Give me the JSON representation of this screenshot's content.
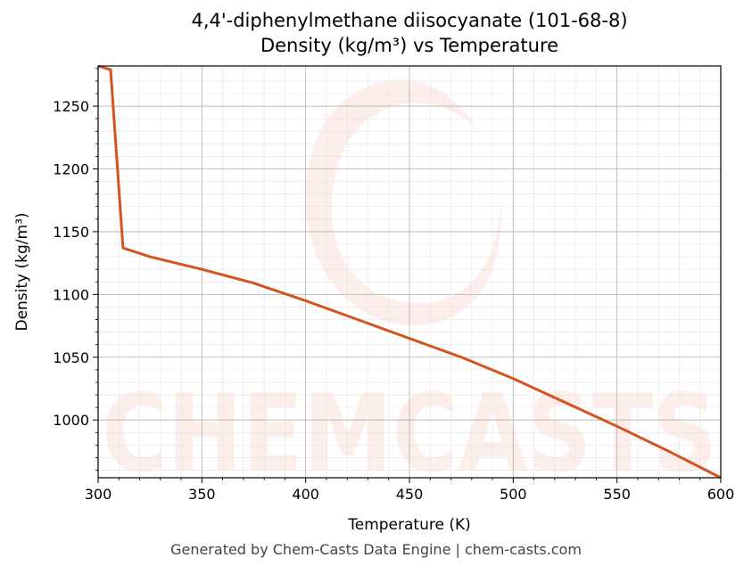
{
  "chart_data": {
    "type": "line",
    "title": "4,4'-diphenylmethane diisocyanate (101-68-8)",
    "subtitle": "Density (kg/m³) vs Temperature",
    "xlabel": "Temperature (K)",
    "ylabel": "Density (kg/m³)",
    "xlim": [
      300,
      600
    ],
    "ylim": [
      954,
      1282
    ],
    "xticks": [
      300,
      350,
      400,
      450,
      500,
      550,
      600
    ],
    "yticks": [
      1000,
      1050,
      1100,
      1150,
      1200,
      1250
    ],
    "grid": true,
    "series": [
      {
        "color": "#d4541f",
        "x": [
          300,
          306,
          312,
          325,
          350,
          375,
          400,
          425,
          450,
          475,
          500,
          525,
          550,
          575,
          600
        ],
        "y": [
          1282,
          1279,
          1137,
          1130,
          1120,
          1109,
          1095,
          1080,
          1065,
          1050,
          1033,
          1014,
          995,
          975,
          954
        ]
      }
    ]
  },
  "watermark": "CHEMCASTS",
  "footer": "Generated by Chem-Casts Data Engine | chem-casts.com"
}
